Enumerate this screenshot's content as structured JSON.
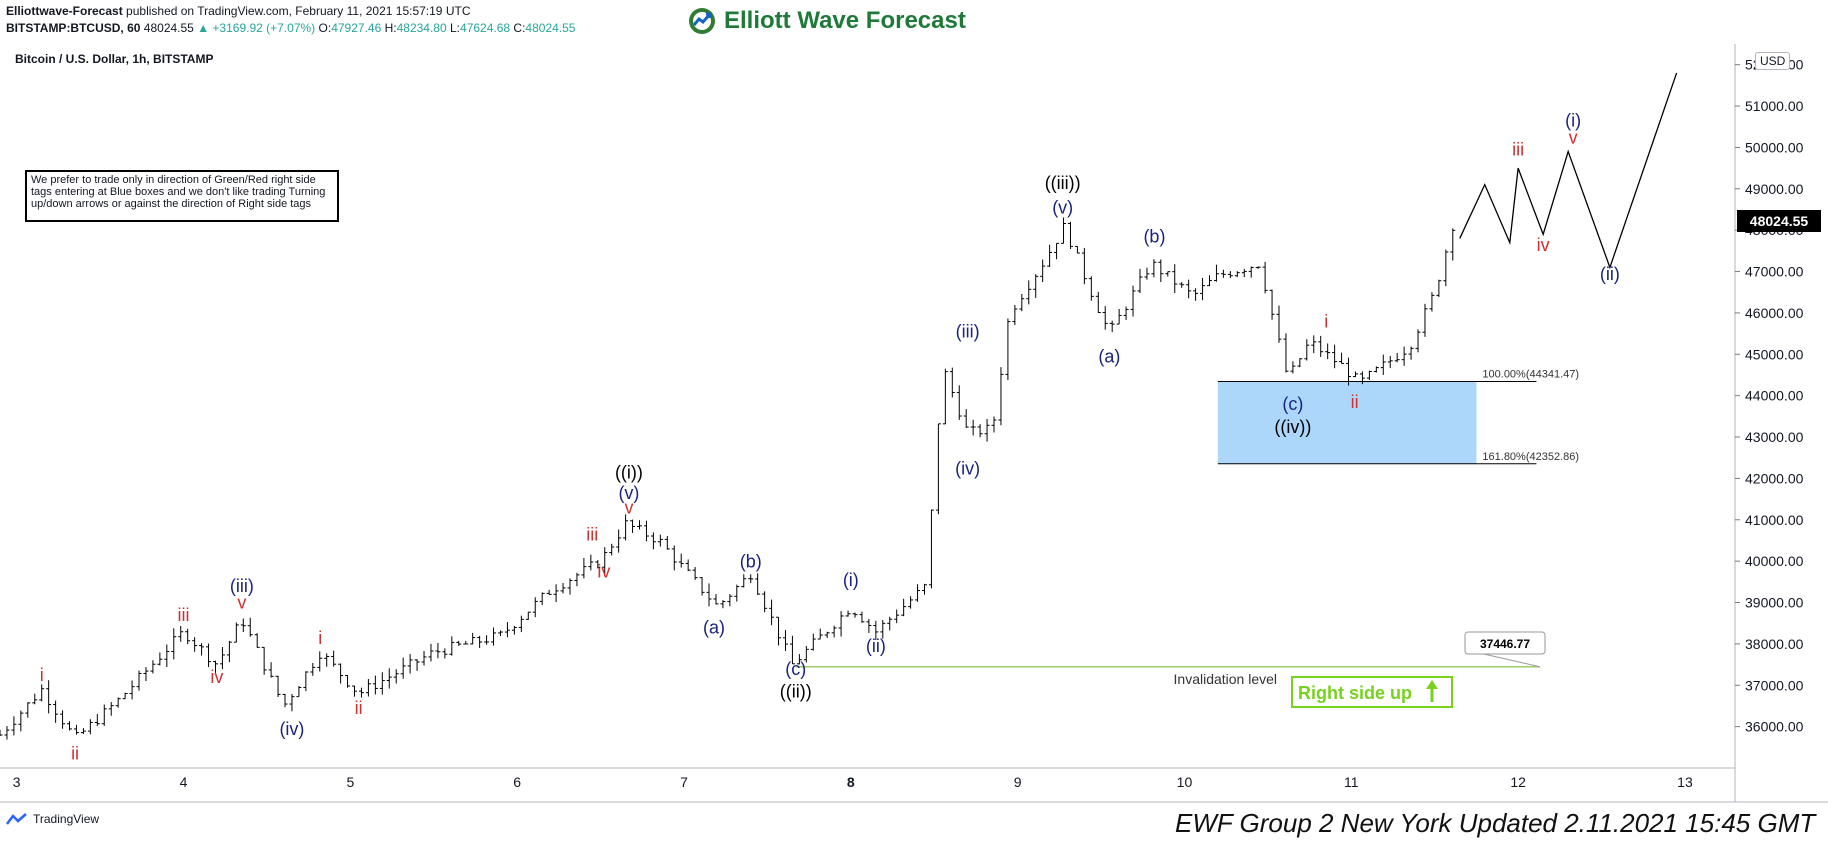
{
  "header": {
    "publisher": "Elliottwave-Forecast",
    "published_text": "published on TradingView.com, February 11, 2021 15:57:19 UTC",
    "symbol_line": "BITSTAMP:BTCUSD, 60",
    "last": "48024.55",
    "change": "▲ +3169.92 (+7.07%)",
    "o_label": "O:",
    "o_val": "47927.46",
    "h_label": "H:",
    "h_val": "48234.80",
    "l_label": "L:",
    "l_val": "47624.68",
    "c_label": "C:",
    "c_val": "48024.55"
  },
  "logo": {
    "text": "Elliott Wave Forecast",
    "icon": "globe-arrow-icon"
  },
  "chart_title": "Bitcoin / U.S. Dollar, 1h, BITSTAMP",
  "note": "We prefer to trade only in direction of Green/Red right side tags entering at Blue boxes and we don't like trading Turning up/down arrows or against the direction of Right side tags",
  "currency_badge": "USD",
  "current_price": "48024.55",
  "footer_text": "EWF Group 2 New York Updated 2.11.2021 15:45 GMT",
  "tradingview_label": "TradingView",
  "colors": {
    "blue_label": "#1a237e",
    "red_label": "#d32f2f",
    "black_label": "#000000",
    "box_fill": "#90caf9",
    "invalidation": "#9ccc65",
    "right_side": "#76d21c"
  },
  "chart_data": {
    "type": "ohlc-bar",
    "title": "Bitcoin / U.S. Dollar, 1h, BITSTAMP",
    "ylim": [
      35000,
      52500
    ],
    "y_ticks": [
      36000,
      37000,
      38000,
      39000,
      40000,
      41000,
      42000,
      43000,
      44000,
      45000,
      46000,
      47000,
      48000,
      49000,
      50000,
      51000,
      52000
    ],
    "y_tick_labels": [
      "36000.00",
      "37000.00",
      "38000.00",
      "39000.00",
      "40000.00",
      "41000.00",
      "42000.00",
      "43000.00",
      "44000.00",
      "45000.00",
      "46000.00",
      "47000.00",
      "48000.00",
      "49000.00",
      "50000.00",
      "51000.00",
      "52000.00"
    ],
    "xlim": [
      2.9,
      13.3
    ],
    "x_ticks": [
      3,
      4,
      5,
      6,
      7,
      8,
      9,
      10,
      11,
      12,
      13
    ],
    "x_tick_labels": [
      "3",
      "4",
      "5",
      "6",
      "7",
      "8",
      "9",
      "10",
      "11",
      "12",
      "13"
    ],
    "price_path": [
      [
        2.9,
        35800
      ],
      [
        3.15,
        36900
      ],
      [
        3.35,
        35700
      ],
      [
        3.6,
        36600
      ],
      [
        4.0,
        38300
      ],
      [
        4.2,
        37500
      ],
      [
        4.35,
        38600
      ],
      [
        4.6,
        36500
      ],
      [
        4.82,
        37800
      ],
      [
        5.05,
        36800
      ],
      [
        5.5,
        37800
      ],
      [
        5.9,
        38200
      ],
      [
        6.2,
        39300
      ],
      [
        6.5,
        40000
      ],
      [
        6.65,
        40900
      ],
      [
        6.85,
        40500
      ],
      [
        7.0,
        39800
      ],
      [
        7.2,
        38900
      ],
      [
        7.4,
        39700
      ],
      [
        7.65,
        37500
      ],
      [
        8.0,
        38900
      ],
      [
        8.15,
        38300
      ],
      [
        8.45,
        39400
      ],
      [
        8.55,
        44700
      ],
      [
        8.7,
        43100
      ],
      [
        8.85,
        43200
      ],
      [
        8.95,
        46000
      ],
      [
        9.15,
        47200
      ],
      [
        9.28,
        48100
      ],
      [
        9.42,
        46700
      ],
      [
        9.55,
        45500
      ],
      [
        9.8,
        47200
      ],
      [
        10.05,
        46400
      ],
      [
        10.2,
        46900
      ],
      [
        10.45,
        47200
      ],
      [
        10.62,
        44400
      ],
      [
        10.75,
        45300
      ],
      [
        10.95,
        44700
      ],
      [
        11.05,
        44300
      ],
      [
        11.35,
        45200
      ],
      [
        11.5,
        46500
      ],
      [
        11.62,
        48300
      ]
    ],
    "projection": [
      [
        11.65,
        47800
      ],
      [
        11.8,
        49100
      ],
      [
        11.95,
        47700
      ],
      [
        12.0,
        49500
      ],
      [
        12.15,
        47900
      ],
      [
        12.3,
        49900
      ],
      [
        12.55,
        47100
      ],
      [
        12.95,
        51800
      ]
    ],
    "wave_labels": [
      {
        "text": "i",
        "x": 3.15,
        "y": 37100,
        "color": "red"
      },
      {
        "text": "ii",
        "x": 3.35,
        "y": 35200,
        "color": "red"
      },
      {
        "text": "iii",
        "x": 4.0,
        "y": 38550,
        "color": "red"
      },
      {
        "text": "iv",
        "x": 4.2,
        "y": 37050,
        "color": "red"
      },
      {
        "text": "v",
        "x": 4.35,
        "y": 38850,
        "color": "red"
      },
      {
        "text": "(iii)",
        "x": 4.35,
        "y": 39250,
        "color": "blue"
      },
      {
        "text": "(iv)",
        "x": 4.65,
        "y": 35800,
        "color": "blue"
      },
      {
        "text": "i",
        "x": 4.82,
        "y": 38000,
        "color": "red"
      },
      {
        "text": "ii",
        "x": 5.05,
        "y": 36300,
        "color": "red"
      },
      {
        "text": "iii",
        "x": 6.45,
        "y": 40500,
        "color": "red"
      },
      {
        "text": "iv",
        "x": 6.52,
        "y": 39600,
        "color": "red"
      },
      {
        "text": "v",
        "x": 6.67,
        "y": 41150,
        "color": "red"
      },
      {
        "text": "(v)",
        "x": 6.67,
        "y": 41500,
        "color": "blue"
      },
      {
        "text": "((i))",
        "x": 6.67,
        "y": 42000,
        "color": "black"
      },
      {
        "text": "(a)",
        "x": 7.18,
        "y": 38250,
        "color": "blue"
      },
      {
        "text": "(b)",
        "x": 7.4,
        "y": 39850,
        "color": "blue"
      },
      {
        "text": "(c)",
        "x": 7.67,
        "y": 37250,
        "color": "blue"
      },
      {
        "text": "((ii))",
        "x": 7.67,
        "y": 36700,
        "color": "black"
      },
      {
        "text": "(i)",
        "x": 8.0,
        "y": 39400,
        "color": "blue"
      },
      {
        "text": "(ii)",
        "x": 8.15,
        "y": 37800,
        "color": "blue"
      },
      {
        "text": "(iii)",
        "x": 8.7,
        "y": 45400,
        "color": "blue"
      },
      {
        "text": "(iv)",
        "x": 8.7,
        "y": 42100,
        "color": "blue"
      },
      {
        "text": "(v)",
        "x": 9.27,
        "y": 48400,
        "color": "blue"
      },
      {
        "text": "((iii))",
        "x": 9.27,
        "y": 49000,
        "color": "black"
      },
      {
        "text": "(a)",
        "x": 9.55,
        "y": 44800,
        "color": "blue"
      },
      {
        "text": "(b)",
        "x": 9.82,
        "y": 47700,
        "color": "blue"
      },
      {
        "text": "(c)",
        "x": 10.65,
        "y": 43650,
        "color": "blue"
      },
      {
        "text": "((iv))",
        "x": 10.65,
        "y": 43100,
        "color": "black"
      },
      {
        "text": "i",
        "x": 10.85,
        "y": 45650,
        "color": "red"
      },
      {
        "text": "ii",
        "x": 11.02,
        "y": 43700,
        "color": "red"
      },
      {
        "text": "iii",
        "x": 12.0,
        "y": 49800,
        "color": "red"
      },
      {
        "text": "iv",
        "x": 12.15,
        "y": 47500,
        "color": "red"
      },
      {
        "text": "v",
        "x": 12.33,
        "y": 50100,
        "color": "red"
      },
      {
        "text": "(i)",
        "x": 12.33,
        "y": 50500,
        "color": "blue"
      },
      {
        "text": "(ii)",
        "x": 12.55,
        "y": 46800,
        "color": "blue"
      }
    ],
    "blue_box": {
      "x0": 10.2,
      "x1": 11.75,
      "y_top": 44341.47,
      "y_bottom": 42352.86
    },
    "fib_labels": [
      {
        "text": "100.00%(44341.47)",
        "y": 44341.47
      },
      {
        "text": "161.80%(42352.86)",
        "y": 42352.86
      }
    ],
    "invalidation": {
      "value": 37446.77,
      "x0": 7.67,
      "x1": 12.1,
      "label": "Invalidation level",
      "callout": "37446.77"
    },
    "right_side": {
      "text": "Right side up"
    }
  }
}
